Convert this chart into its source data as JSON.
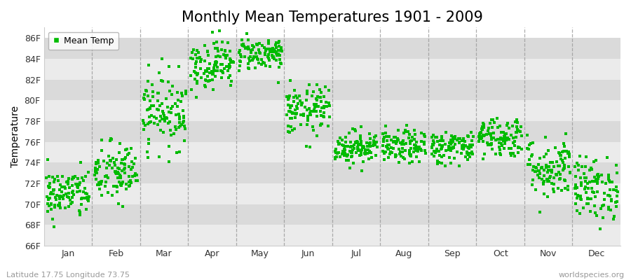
{
  "title": "Monthly Mean Temperatures 1901 - 2009",
  "ylabel": "Temperature",
  "subtitle_left": "Latitude 17.75 Longitude 73.75",
  "subtitle_right": "worldspecies.org",
  "months": [
    "Jan",
    "Feb",
    "Mar",
    "Apr",
    "May",
    "Jun",
    "Jul",
    "Aug",
    "Sep",
    "Oct",
    "Nov",
    "Dec"
  ],
  "ylim": [
    66,
    87
  ],
  "yticks": [
    66,
    68,
    70,
    72,
    74,
    76,
    78,
    80,
    82,
    84,
    86
  ],
  "ytick_labels": [
    "66F",
    "68F",
    "70F",
    "72F",
    "74F",
    "76F",
    "78F",
    "80F",
    "82F",
    "84F",
    "86F"
  ],
  "dot_color": "#00bb00",
  "dot_size": 7,
  "background_color": "#ffffff",
  "band_colors": [
    "#ebebeb",
    "#dadada"
  ],
  "legend_label": "Mean Temp",
  "title_fontsize": 15,
  "label_fontsize": 10,
  "tick_fontsize": 9,
  "monthly_means": [
    71.0,
    73.0,
    79.0,
    83.5,
    84.5,
    79.0,
    75.5,
    75.5,
    75.5,
    76.5,
    73.5,
    71.5
  ],
  "monthly_stds": [
    1.2,
    1.5,
    1.8,
    1.2,
    0.8,
    1.2,
    0.8,
    0.8,
    0.8,
    1.0,
    1.5,
    1.5
  ],
  "years": 109,
  "seed": 42,
  "fig_bg": "#ffffff",
  "spine_color": "#cccccc",
  "vline_color": "#999999",
  "vline_alpha": 0.8
}
